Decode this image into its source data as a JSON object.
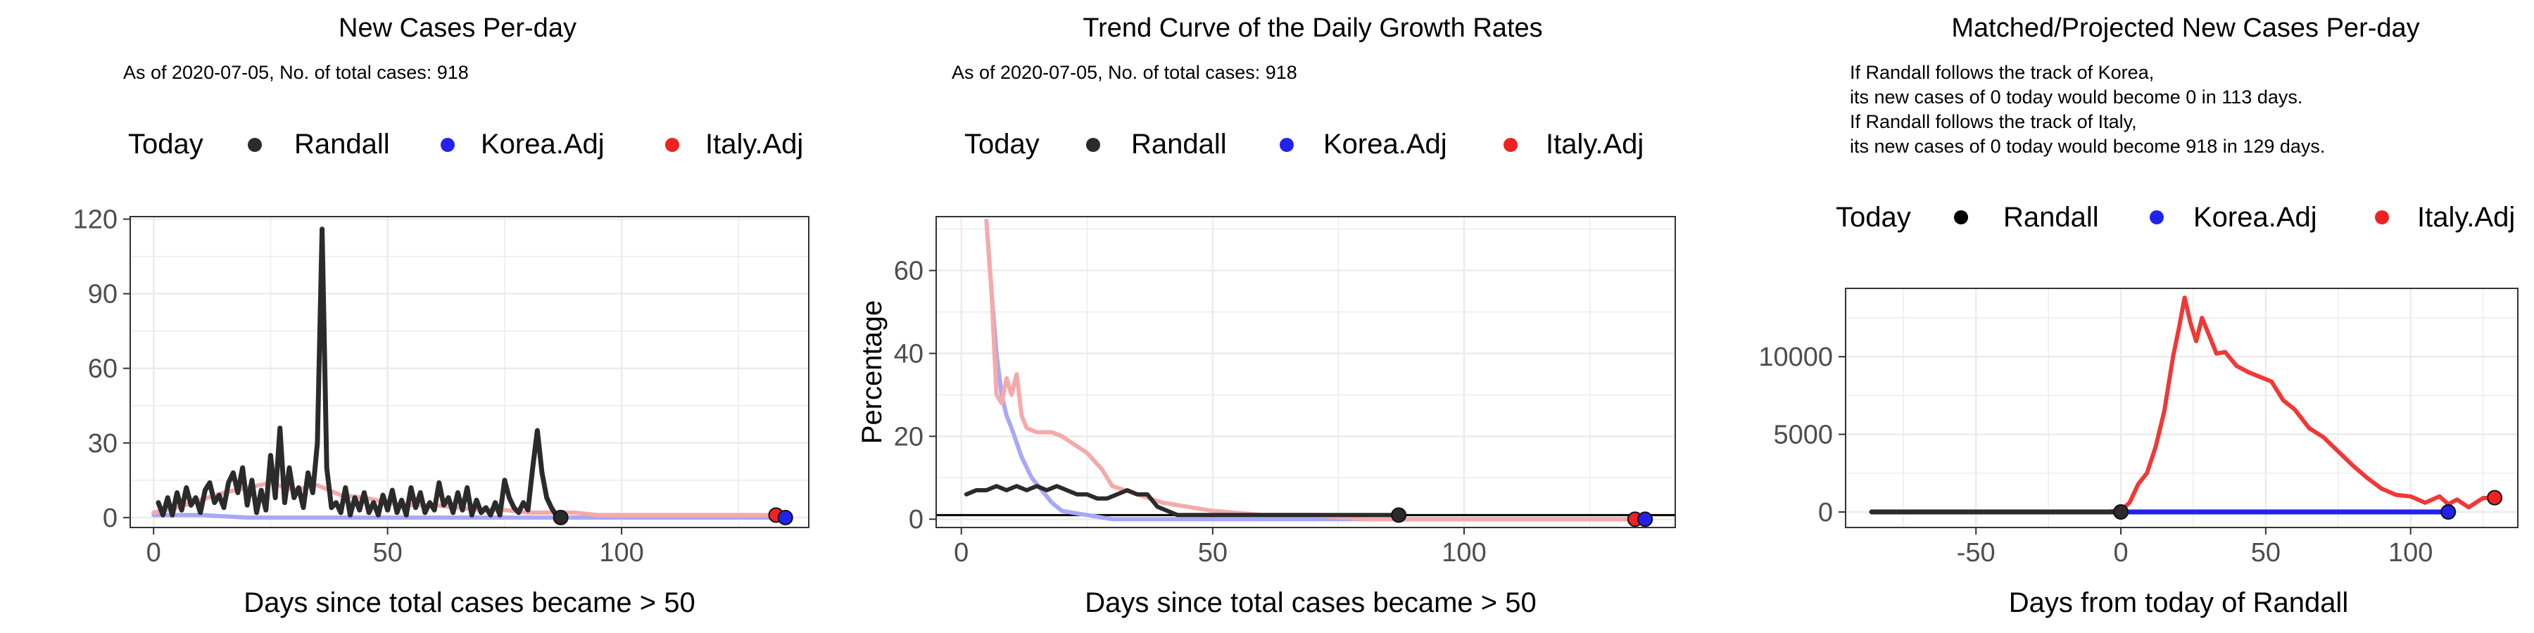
{
  "colors": {
    "today": "#2b2b2b",
    "randall": "#2b2b2b",
    "korea": "#2222ee",
    "italy": "#ee2222",
    "korea_light": "#a8a8f5",
    "italy_light": "#f5aaaa"
  },
  "chart_data": [
    {
      "type": "line",
      "title": "New Cases Per-day",
      "subtitle": "As of 2020-07-05, No. of total cases: 918",
      "xlabel": "Days since total cases became > 50",
      "ylabel": "",
      "xlim": [
        -5,
        140
      ],
      "ylim": [
        -4,
        121
      ],
      "xticks": [
        0,
        50,
        100
      ],
      "yticks": [
        0,
        30,
        60,
        90,
        120
      ],
      "legend": {
        "position": "top",
        "title": "Today",
        "entries": [
          "Randall",
          "Korea.Adj",
          "Italy.Adj"
        ]
      },
      "series": [
        {
          "name": "Randall",
          "color": "#2b2b2b",
          "x": [
            1,
            2,
            3,
            4,
            5,
            6,
            7,
            8,
            9,
            10,
            11,
            12,
            13,
            14,
            15,
            16,
            17,
            18,
            19,
            20,
            21,
            22,
            23,
            24,
            25,
            26,
            27,
            28,
            29,
            30,
            31,
            32,
            33,
            34,
            35,
            36,
            37,
            38,
            39,
            40,
            41,
            42,
            43,
            44,
            45,
            46,
            47,
            48,
            49,
            50,
            51,
            52,
            53,
            54,
            55,
            56,
            57,
            58,
            59,
            60,
            61,
            62,
            63,
            64,
            65,
            66,
            67,
            68,
            69,
            70,
            71,
            72,
            73,
            74,
            75,
            76,
            77,
            78,
            79,
            80,
            81,
            82,
            83,
            84,
            85,
            86,
            87
          ],
          "y": [
            6,
            1,
            8,
            1,
            10,
            3,
            12,
            5,
            8,
            2,
            11,
            14,
            6,
            9,
            4,
            14,
            18,
            10,
            20,
            5,
            15,
            2,
            11,
            3,
            25,
            8,
            36,
            6,
            20,
            8,
            12,
            4,
            18,
            10,
            30,
            116,
            20,
            4,
            6,
            2,
            12,
            1,
            8,
            3,
            10,
            2,
            6,
            1,
            9,
            3,
            11,
            2,
            7,
            1,
            12,
            4,
            10,
            2,
            6,
            3,
            14,
            5,
            8,
            2,
            10,
            3,
            12,
            1,
            7,
            2,
            4,
            1,
            6,
            1,
            15,
            8,
            4,
            2,
            6,
            3,
            20,
            35,
            18,
            8,
            4,
            1,
            0
          ]
        },
        {
          "name": "Korea.Adj",
          "color": "#a8a8f5",
          "x": [
            0,
            10,
            20,
            30,
            40,
            50,
            60,
            70,
            80,
            90,
            100,
            110,
            120,
            130,
            135
          ],
          "y": [
            1,
            1,
            0,
            0,
            0,
            0,
            0,
            0,
            0,
            0,
            0,
            0,
            0,
            0,
            0
          ]
        },
        {
          "name": "Italy.Adj",
          "color": "#f5aaaa",
          "x": [
            0,
            5,
            10,
            15,
            20,
            25,
            30,
            35,
            40,
            45,
            50,
            55,
            60,
            65,
            70,
            75,
            80,
            85,
            90,
            95,
            100,
            105,
            110,
            115,
            120,
            125,
            130,
            133
          ],
          "y": [
            2,
            4,
            7,
            10,
            12,
            14,
            11,
            13,
            9,
            8,
            6,
            5,
            5,
            4,
            3,
            3,
            2,
            2,
            2,
            1,
            1,
            1,
            1,
            1,
            1,
            1,
            1,
            1
          ]
        }
      ],
      "today_points": [
        {
          "series": "Randall",
          "x": 87,
          "y": 0
        },
        {
          "series": "Italy.Adj",
          "x": 133,
          "y": 1
        },
        {
          "series": "Korea.Adj",
          "x": 135,
          "y": 0
        }
      ]
    },
    {
      "type": "line",
      "title": "Trend Curve of the Daily Growth Rates",
      "subtitle": "As of 2020-07-05, No. of total cases: 918",
      "xlabel": "Days since total cases became > 50",
      "ylabel": "Percentage",
      "xlim": [
        -5,
        142
      ],
      "ylim": [
        -2,
        73
      ],
      "xticks": [
        0,
        50,
        100
      ],
      "yticks": [
        0,
        20,
        40,
        60
      ],
      "hline": 1,
      "legend": {
        "position": "top",
        "title": "Today",
        "entries": [
          "Randall",
          "Korea.Adj",
          "Italy.Adj"
        ]
      },
      "series": [
        {
          "name": "Randall",
          "color": "#2b2b2b",
          "x": [
            1,
            3,
            5,
            7,
            9,
            11,
            13,
            15,
            17,
            19,
            21,
            23,
            25,
            27,
            29,
            31,
            33,
            35,
            37,
            39,
            41,
            43,
            45,
            50,
            55,
            60,
            65,
            70,
            75,
            80,
            85,
            87
          ],
          "y": [
            6,
            7,
            7,
            8,
            7,
            8,
            7,
            8,
            7,
            8,
            7,
            6,
            6,
            5,
            5,
            6,
            7,
            6,
            6,
            3,
            2,
            1,
            1,
            1,
            1,
            1,
            1,
            1,
            1,
            1,
            1,
            1
          ]
        },
        {
          "name": "Korea.Adj",
          "color": "#a8a8f5",
          "x": [
            5,
            6,
            7,
            8,
            9,
            10,
            12,
            14,
            16,
            18,
            20,
            25,
            30,
            40,
            50,
            60,
            80,
            100,
            120,
            135
          ],
          "y": [
            72,
            55,
            40,
            30,
            25,
            22,
            15,
            10,
            7,
            4,
            2,
            1,
            0,
            0,
            0,
            0,
            0,
            0,
            0,
            0
          ]
        },
        {
          "name": "Italy.Adj",
          "color": "#f5aaaa",
          "x": [
            5,
            6,
            7,
            8,
            9,
            10,
            11,
            12,
            13,
            15,
            18,
            20,
            25,
            28,
            30,
            35,
            40,
            50,
            60,
            70,
            80,
            90,
            100,
            110,
            120,
            130,
            134
          ],
          "y": [
            72,
            55,
            30,
            28,
            34,
            30,
            35,
            25,
            22,
            21,
            21,
            20,
            16,
            12,
            8,
            6,
            4,
            2,
            1,
            1,
            0,
            0,
            0,
            0,
            0,
            0,
            0
          ]
        }
      ],
      "today_points": [
        {
          "series": "Randall",
          "x": 87,
          "y": 1
        },
        {
          "series": "Italy.Adj",
          "x": 134,
          "y": 0
        },
        {
          "series": "Korea.Adj",
          "x": 136,
          "y": 0
        }
      ]
    },
    {
      "type": "line",
      "title": "Matched/Projected New Cases Per-day",
      "subtitle_lines": [
        "If Randall follows the track of Korea,",
        "its new cases of 0 today would become 0 in 113 days.",
        "If Randall follows the track of Italy,",
        "its new cases of 0 today would become 918 in 129 days."
      ],
      "xlabel": "Days from today of Randall",
      "ylabel": "",
      "xlim": [
        -95,
        137
      ],
      "ylim": [
        -1000,
        14400
      ],
      "xticks": [
        -50,
        0,
        50,
        100
      ],
      "yticks": [
        0,
        5000,
        10000
      ],
      "legend": {
        "position": "top",
        "title": "Today",
        "entries": [
          "Randall",
          "Korea.Adj",
          "Italy.Adj"
        ]
      },
      "series": [
        {
          "name": "Randall",
          "color": "#2b2b2b",
          "x": [
            -86,
            -70,
            -50,
            -30,
            -10,
            0
          ],
          "y": [
            0,
            0,
            0,
            0,
            0,
            0
          ]
        },
        {
          "name": "Korea.Adj",
          "color": "#2222ee",
          "x": [
            0,
            20,
            40,
            60,
            80,
            100,
            113
          ],
          "y": [
            0,
            0,
            0,
            0,
            0,
            0,
            0
          ]
        },
        {
          "name": "Italy.Adj",
          "color": "#ee2222",
          "x": [
            -30,
            -20,
            -10,
            -5,
            0,
            3,
            6,
            9,
            12,
            15,
            18,
            20,
            22,
            24,
            26,
            28,
            30,
            33,
            36,
            40,
            44,
            48,
            52,
            56,
            60,
            65,
            70,
            75,
            80,
            85,
            90,
            95,
            100,
            105,
            110,
            113,
            116,
            120,
            125,
            129
          ],
          "y": [
            0,
            0,
            0,
            0,
            100,
            600,
            1800,
            2500,
            4200,
            6500,
            10000,
            11800,
            13800,
            12200,
            11000,
            12500,
            11600,
            10200,
            10300,
            9400,
            9000,
            8700,
            8400,
            7200,
            6600,
            5400,
            4800,
            3900,
            3000,
            2200,
            1500,
            1100,
            1000,
            600,
            1000,
            500,
            800,
            300,
            900,
            918
          ]
        }
      ],
      "today_points": [
        {
          "series": "Randall",
          "x": 0,
          "y": 0
        },
        {
          "series": "Korea.Adj",
          "x": 113,
          "y": 0
        },
        {
          "series": "Italy.Adj",
          "x": 129,
          "y": 918
        }
      ]
    }
  ]
}
